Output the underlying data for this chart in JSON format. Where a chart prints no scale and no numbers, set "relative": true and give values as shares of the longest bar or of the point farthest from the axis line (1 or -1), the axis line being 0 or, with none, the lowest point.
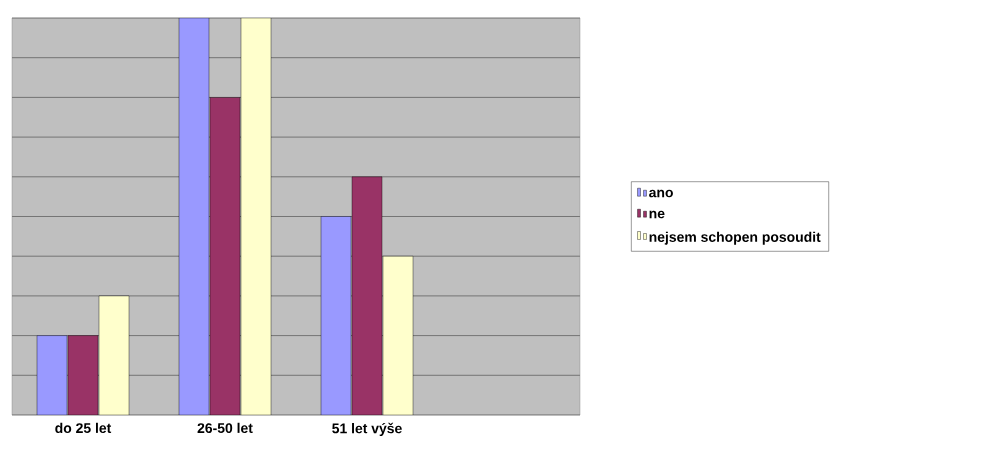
{
  "chart_data": {
    "type": "bar",
    "relative": true,
    "grid": "y",
    "legend": "right",
    "categories": [
      "do 25 let",
      "26-50 let",
      "51 let výše",
      null
    ],
    "series": [
      {
        "name": "ano",
        "color": "#9999ff",
        "values": [
          0.2,
          1,
          0.5,
          null
        ]
      },
      {
        "name": "ne",
        "color": "#993366",
        "values": [
          0.2,
          0.8,
          0.6,
          null
        ]
      },
      {
        "name": "nejsem schopen posoudit",
        "color": "#ffffcc",
        "values": [
          0.3,
          1,
          0.4,
          null
        ]
      }
    ]
  }
}
